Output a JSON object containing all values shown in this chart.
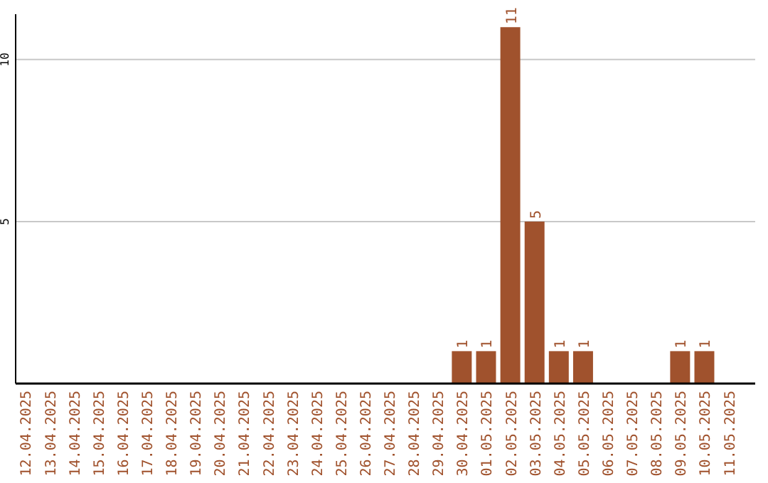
{
  "chart_data": {
    "type": "bar",
    "categories": [
      "12.04.2025",
      "13.04.2025",
      "14.04.2025",
      "15.04.2025",
      "16.04.2025",
      "17.04.2025",
      "18.04.2025",
      "19.04.2025",
      "20.04.2025",
      "21.04.2025",
      "22.04.2025",
      "23.04.2025",
      "24.04.2025",
      "25.04.2025",
      "26.04.2025",
      "27.04.2025",
      "28.04.2025",
      "29.04.2025",
      "30.04.2025",
      "01.05.2025",
      "02.05.2025",
      "03.05.2025",
      "04.05.2025",
      "05.05.2025",
      "06.05.2025",
      "07.05.2025",
      "08.05.2025",
      "09.05.2025",
      "10.05.2025",
      "11.05.2025"
    ],
    "values": [
      0,
      0,
      0,
      0,
      0,
      0,
      0,
      0,
      0,
      0,
      0,
      0,
      0,
      0,
      0,
      0,
      0,
      0,
      1,
      1,
      11,
      5,
      1,
      1,
      0,
      0,
      0,
      1,
      1,
      0
    ],
    "value_labels": [
      null,
      null,
      null,
      null,
      null,
      null,
      null,
      null,
      null,
      null,
      null,
      null,
      null,
      null,
      null,
      null,
      null,
      null,
      "1",
      "1",
      "11",
      "5",
      "1",
      "1",
      null,
      null,
      null,
      "1",
      "1",
      null
    ],
    "color": "#a0522d",
    "ylim": [
      0,
      11.4
    ],
    "yticks": [
      5,
      10
    ],
    "grid": "y"
  }
}
